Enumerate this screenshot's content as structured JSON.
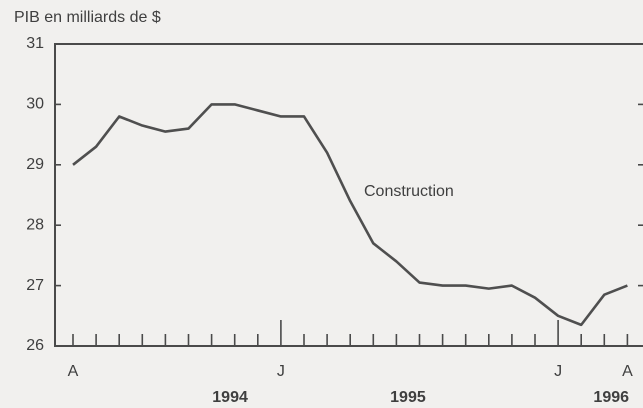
{
  "chart_data": {
    "type": "line",
    "title": "PIB en milliards de $",
    "annotation": "Construction",
    "categories": [
      "A",
      null,
      null,
      null,
      null,
      null,
      null,
      null,
      null,
      "J",
      null,
      null,
      null,
      null,
      null,
      null,
      null,
      null,
      null,
      null,
      null,
      "J",
      null,
      null,
      "A"
    ],
    "year_labels": [
      "1994",
      "1995",
      "1996"
    ],
    "series": [
      {
        "name": "Construction",
        "color": "#4f4f4f",
        "values": [
          29.0,
          29.3,
          29.8,
          29.65,
          29.55,
          29.6,
          30.0,
          30.0,
          29.9,
          29.8,
          29.8,
          29.2,
          28.4,
          27.7,
          27.4,
          27.05,
          27.0,
          27.0,
          26.95,
          27.0,
          26.8,
          26.5,
          26.35,
          26.85,
          27.0
        ]
      }
    ],
    "ylim": [
      26,
      31
    ],
    "yticks": [
      26,
      27,
      28,
      29,
      30,
      31
    ],
    "grid": false
  }
}
